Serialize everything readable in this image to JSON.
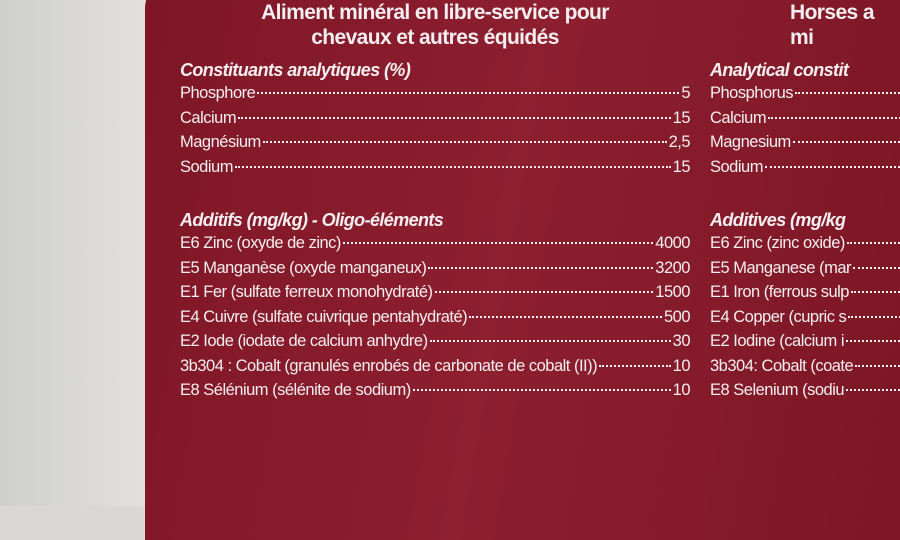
{
  "french": {
    "title": [
      "Aliment minéral en libre-service pour",
      "chevaux et autres équidés"
    ],
    "analytical": {
      "heading": "Constituants analytiques (%)",
      "rows": [
        [
          "Phosphore",
          "5"
        ],
        [
          "Calcium",
          "15"
        ],
        [
          "Magnésium",
          "2,5"
        ],
        [
          "Sodium",
          "15"
        ]
      ]
    },
    "additives": {
      "heading": "Additifs (mg/kg) - Oligo-éléments",
      "rows": [
        [
          "E6 Zinc (oxyde de zinc)",
          "4000"
        ],
        [
          "E5 Manganèse (oxyde manganeux)",
          "3200"
        ],
        [
          "E1 Fer (sulfate ferreux monohydraté)",
          "1500"
        ],
        [
          "E4 Cuivre (sulfate cuivrique pentahydraté)",
          "500"
        ],
        [
          "E2 Iode (iodate de calcium anhydre)",
          "30"
        ],
        [
          "3b304 : Cobalt (granulés enrobés de carbonate de cobalt (II))",
          "10"
        ],
        [
          "E8 Sélénium (sélénite de sodium)",
          "10"
        ]
      ]
    }
  },
  "english": {
    "title": [
      "Horses a",
      "mi"
    ],
    "analytical": {
      "heading": "Analytical constit",
      "rows": [
        [
          "Phosphorus"
        ],
        [
          "Calcium"
        ],
        [
          "Magnesium"
        ],
        [
          "Sodium"
        ]
      ]
    },
    "additives": {
      "heading": "Additives (mg/kg",
      "rows": [
        [
          "E6 Zinc (zinc oxide)"
        ],
        [
          "E5 Manganese (mar"
        ],
        [
          "E1 Iron (ferrous sulp"
        ],
        [
          "E4 Copper (cupric s"
        ],
        [
          "E2 Iodine (calcium i"
        ],
        [
          "3b304: Cobalt (coate"
        ],
        [
          "E8 Selenium (sodiu"
        ]
      ]
    }
  }
}
